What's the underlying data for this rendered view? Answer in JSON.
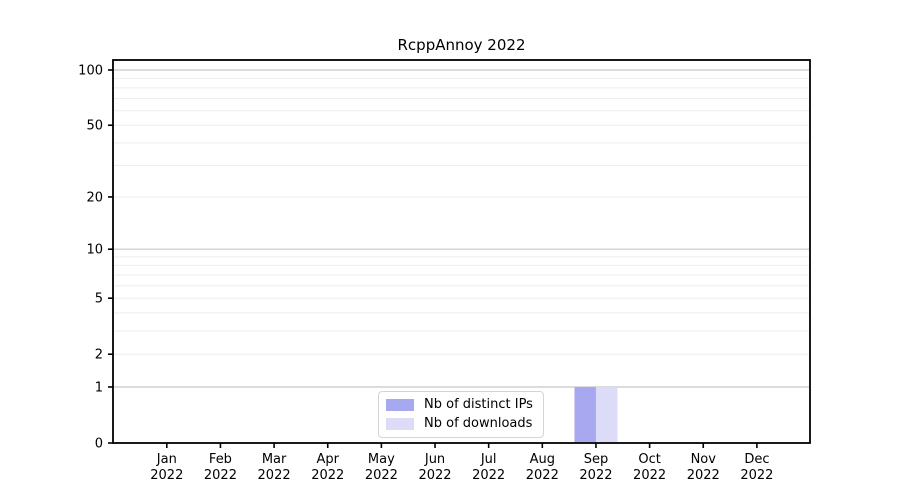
{
  "chart_data": {
    "type": "bar",
    "title": "RcppAnnoy 2022",
    "categories": [
      "Jan 2022",
      "Feb 2022",
      "Mar 2022",
      "Apr 2022",
      "May 2022",
      "Jun 2022",
      "Jul 2022",
      "Aug 2022",
      "Sep 2022",
      "Oct 2022",
      "Nov 2022",
      "Dec 2022"
    ],
    "series": [
      {
        "name": "Nb of distinct IPs",
        "color": "#a8a8f0",
        "values": [
          0,
          0,
          0,
          0,
          0,
          0,
          0,
          0,
          1,
          0,
          0,
          0
        ]
      },
      {
        "name": "Nb of downloads",
        "color": "#dcdcf8",
        "values": [
          0,
          0,
          0,
          0,
          0,
          0,
          0,
          0,
          1,
          0,
          0,
          0
        ]
      }
    ],
    "xlabel": "",
    "ylabel": "",
    "yscale": "log1p",
    "ylim": [
      0,
      113
    ],
    "y_tick_values": [
      0,
      1,
      2,
      5,
      10,
      20,
      50,
      100
    ],
    "y_major_gridlines": [
      1,
      10,
      100
    ],
    "y_minor_gridlines": [
      2,
      3,
      4,
      5,
      6,
      7,
      8,
      9,
      20,
      30,
      40,
      50,
      60,
      70,
      80,
      90
    ],
    "grid": "on",
    "legend_position": "lower center",
    "colors": {
      "spine": "#000000",
      "tick_label": "#000000",
      "major_grid": "#c8c8c8",
      "minor_grid": "#eeeeee"
    }
  }
}
